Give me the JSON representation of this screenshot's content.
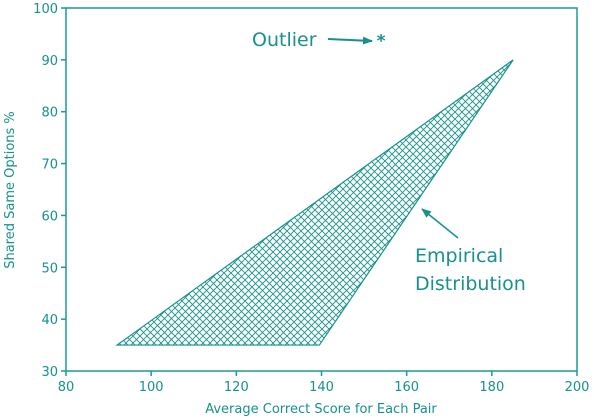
{
  "chart_data": {
    "type": "area",
    "xlabel": "Average Correct Score for Each Pair",
    "ylabel": "Shared Same Options %",
    "xlim": [
      80,
      200
    ],
    "ylim": [
      30,
      100
    ],
    "xticks": [
      80,
      100,
      120,
      140,
      160,
      180,
      200
    ],
    "yticks": [
      30,
      40,
      50,
      60,
      70,
      80,
      90,
      100
    ],
    "grid": false,
    "colors": {
      "axis": "#1a9a95",
      "text": "#17918b",
      "hatch": "#17918b"
    },
    "region": {
      "points": [
        [
          92,
          35
        ],
        [
          139.5,
          35
        ],
        [
          185,
          90
        ]
      ]
    },
    "outlier": {
      "x": 154,
      "y": 93.5,
      "marker": "*"
    },
    "annotations": {
      "outlier_label": "Outlier",
      "region_label_line1": "Empirical",
      "region_label_line2": "Distribution"
    }
  }
}
